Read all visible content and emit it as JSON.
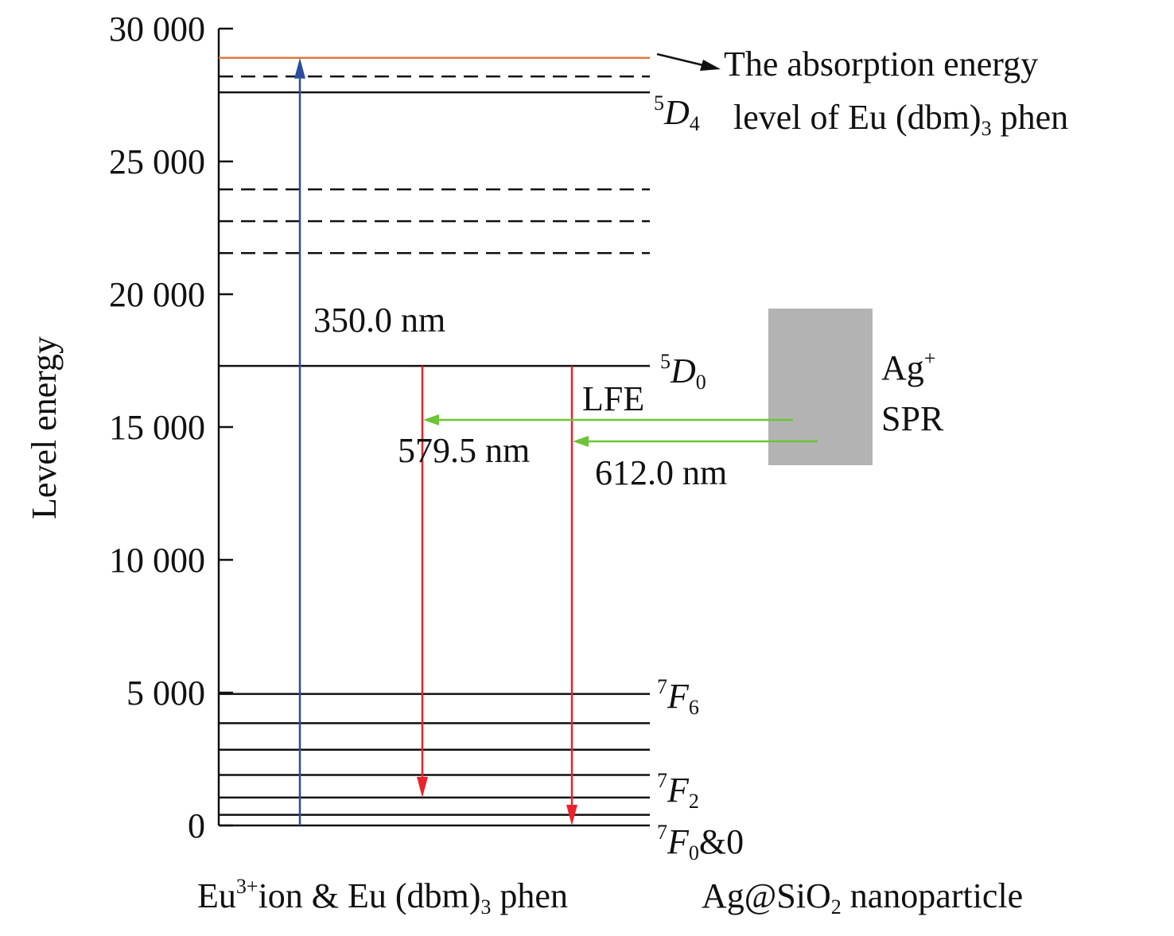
{
  "axis": {
    "ylabel": "Level energy",
    "ticks": [
      {
        "value": 0,
        "label": "0"
      },
      {
        "value": 5000,
        "label": "5 000"
      },
      {
        "value": 10000,
        "label": "10 000"
      },
      {
        "value": 15000,
        "label": "15 000"
      },
      {
        "value": 20000,
        "label": "20 000"
      },
      {
        "value": 25000,
        "label": "25 000"
      },
      {
        "value": 30000,
        "label": "30 000"
      }
    ]
  },
  "levels": {
    "absorption": 28900,
    "solid": [
      27600,
      17300,
      4950,
      3850,
      2850,
      1900,
      1050,
      400,
      0
    ],
    "dashed": [
      28200,
      23950,
      22750,
      21550
    ]
  },
  "level_labels": {
    "d4": {
      "sup": "5",
      "main": "D",
      "sub": "4"
    },
    "d0": {
      "sup": "5",
      "main": "D",
      "sub": "0"
    },
    "f6": {
      "sup": "7",
      "main": "F",
      "sub": "6"
    },
    "f2": {
      "sup": "7",
      "main": "F",
      "sub": "2"
    },
    "f0": {
      "sup": "7",
      "main": "F",
      "sub": "0",
      "tail": "&0"
    }
  },
  "transitions": {
    "excitation": {
      "label": "350.0 nm",
      "from": 0,
      "to": 28900,
      "color": "#2a4d9e"
    },
    "emission_1": {
      "label": "579.5 nm",
      "from": 17300,
      "to": 1050,
      "color": "#e8232c"
    },
    "emission_2": {
      "label": "612.0 nm",
      "from": 17300,
      "to": 0,
      "color": "#e8232c"
    },
    "lfe": {
      "label": "LFE",
      "color": "#6cc437"
    }
  },
  "annotation": {
    "line1": "The absorption energy",
    "line2_pre": "level of Eu (dbm)",
    "line2_sub": "3",
    "line2_post": " phen"
  },
  "spr": {
    "line1_main": "Ag",
    "line1_sup": "+",
    "line2": "SPR",
    "box_color": "#b3b3b3"
  },
  "bottom_labels": {
    "left_pre": "Eu",
    "left_sup": "3+",
    "left_mid": "ion & Eu (dbm)",
    "left_sub": "3",
    "left_post": " phen",
    "right_pre": "Ag@SiO",
    "right_sub": "2",
    "right_post": " nanoparticle"
  },
  "colors": {
    "absorption_line": "#e07b39",
    "level_line": "#111111"
  }
}
